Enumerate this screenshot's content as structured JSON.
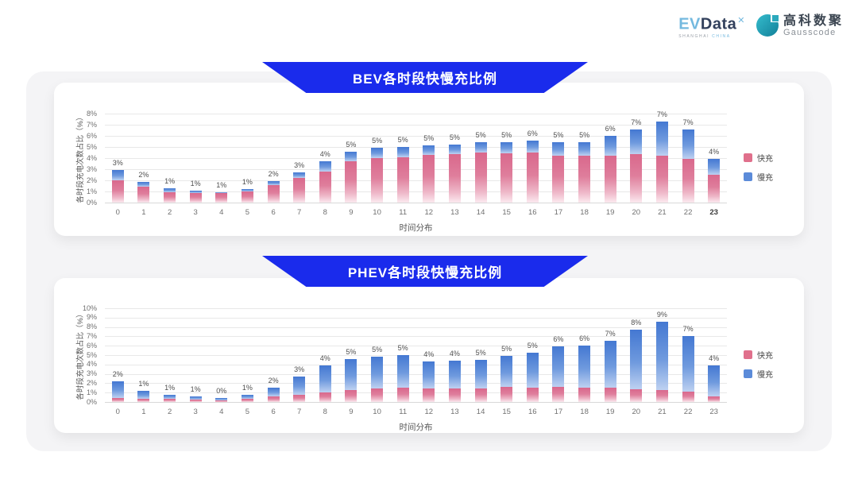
{
  "header": {
    "evdata": {
      "ev": "EV",
      "data": "Data",
      "x": "✕",
      "sub_left": "SHANGHAI",
      "sub_right": "CHINA"
    },
    "gausscode": {
      "cn": "高科数聚",
      "en": "Gausscode"
    }
  },
  "colors": {
    "banner_blue": "#1a2bec",
    "panel_gray": "#f4f4f6",
    "fast_pink": "#e0708c",
    "slow_blue": "#5b8bd9"
  },
  "chart_data": [
    {
      "type": "bar",
      "stacked": true,
      "title": "BEV各时段快慢充比例",
      "xlabel": "时间分布",
      "ylabel": "各时段充电次数占比（%）",
      "ylim": [
        0,
        8
      ],
      "ytick_step": 1,
      "grid": true,
      "legend_position": "right",
      "categories": [
        "0",
        "1",
        "2",
        "3",
        "4",
        "5",
        "6",
        "7",
        "8",
        "9",
        "10",
        "11",
        "12",
        "13",
        "14",
        "15",
        "16",
        "17",
        "18",
        "19",
        "20",
        "21",
        "22",
        "23"
      ],
      "bold_category": "23",
      "series": [
        {
          "name": "快充",
          "color": "#e0708c",
          "values": [
            2.0,
            1.4,
            0.9,
            0.85,
            0.85,
            1.0,
            1.6,
            2.2,
            2.8,
            3.7,
            4.0,
            4.1,
            4.3,
            4.35,
            4.5,
            4.4,
            4.5,
            4.2,
            4.2,
            4.25,
            4.35,
            4.2,
            3.9,
            2.5
          ]
        },
        {
          "name": "慢充",
          "color": "#5b8bd9",
          "values": [
            0.9,
            0.45,
            0.4,
            0.25,
            0.1,
            0.2,
            0.3,
            0.5,
            0.9,
            0.9,
            0.9,
            0.9,
            0.85,
            0.85,
            0.9,
            1.0,
            1.1,
            1.2,
            1.25,
            1.75,
            2.25,
            3.1,
            2.7,
            1.4
          ]
        }
      ],
      "bar_labels": [
        "3%",
        "2%",
        "1%",
        "1%",
        "1%",
        "1%",
        "2%",
        "3%",
        "4%",
        "5%",
        "5%",
        "5%",
        "5%",
        "5%",
        "5%",
        "5%",
        "6%",
        "5%",
        "5%",
        "6%",
        "7%",
        "7%",
        "7%",
        "4%"
      ]
    },
    {
      "type": "bar",
      "stacked": true,
      "title": "PHEV各时段快慢充比例",
      "xlabel": "时间分布",
      "ylabel": "各时段充电次数占比（%）",
      "ylim": [
        0,
        10
      ],
      "ytick_step": 1,
      "grid": true,
      "legend_position": "right",
      "categories": [
        "0",
        "1",
        "2",
        "3",
        "4",
        "5",
        "6",
        "7",
        "8",
        "9",
        "10",
        "11",
        "12",
        "13",
        "14",
        "15",
        "16",
        "17",
        "18",
        "19",
        "20",
        "21",
        "22",
        "23"
      ],
      "bold_category": null,
      "series": [
        {
          "name": "快充",
          "color": "#e0708c",
          "values": [
            0.45,
            0.35,
            0.3,
            0.25,
            0.15,
            0.3,
            0.55,
            0.75,
            1.05,
            1.3,
            1.4,
            1.55,
            1.4,
            1.4,
            1.4,
            1.6,
            1.5,
            1.6,
            1.55,
            1.5,
            1.35,
            1.25,
            1.1,
            0.6
          ]
        },
        {
          "name": "慢充",
          "color": "#5b8bd9",
          "values": [
            1.75,
            0.85,
            0.45,
            0.35,
            0.25,
            0.5,
            0.95,
            2.0,
            2.85,
            3.3,
            3.4,
            3.45,
            2.9,
            3.0,
            3.1,
            3.3,
            3.8,
            4.3,
            4.45,
            5.0,
            6.35,
            7.35,
            5.9,
            3.3
          ]
        }
      ],
      "bar_labels": [
        "2%",
        "1%",
        "1%",
        "1%",
        "0%",
        "1%",
        "2%",
        "3%",
        "4%",
        "5%",
        "5%",
        "5%",
        "4%",
        "4%",
        "5%",
        "5%",
        "5%",
        "6%",
        "6%",
        "7%",
        "8%",
        "9%",
        "7%",
        "4%"
      ]
    }
  ]
}
